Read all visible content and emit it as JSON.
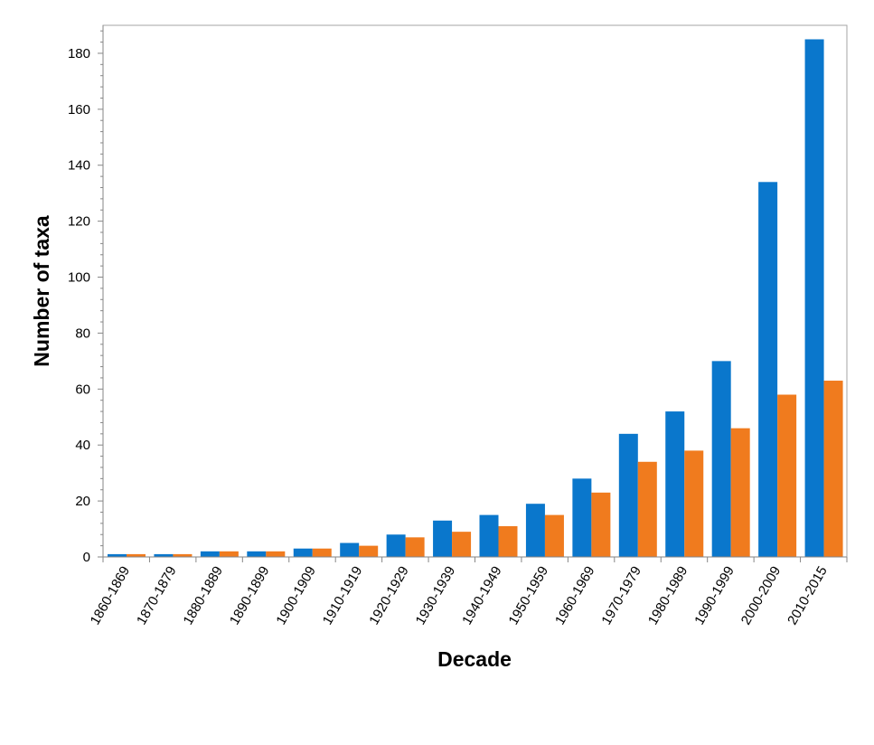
{
  "chart_data": {
    "type": "bar",
    "xlabel": "Decade",
    "ylabel": "Number of taxa",
    "ylim": [
      0,
      190
    ],
    "yticks": [
      0,
      20,
      40,
      60,
      80,
      100,
      120,
      140,
      160,
      180
    ],
    "grid": false,
    "categories": [
      "1860-1869",
      "1870-1879",
      "1880-1889",
      "1890-1899",
      "1900-1909",
      "1910-1919",
      "1920-1929",
      "1930-1939",
      "1940-1949",
      "1950-1959",
      "1960-1969",
      "1970-1979",
      "1980-1989",
      "1990-1999",
      "2000-2009",
      "2010-2015"
    ],
    "series": [
      {
        "color": "#0A77CC",
        "values": [
          1,
          1,
          2,
          2,
          3,
          5,
          8,
          13,
          15,
          19,
          28,
          44,
          52,
          70,
          134,
          185
        ]
      },
      {
        "color": "#F07B1E",
        "values": [
          1,
          1,
          2,
          2,
          3,
          4,
          7,
          9,
          11,
          15,
          23,
          34,
          38,
          46,
          58,
          63
        ]
      }
    ]
  }
}
